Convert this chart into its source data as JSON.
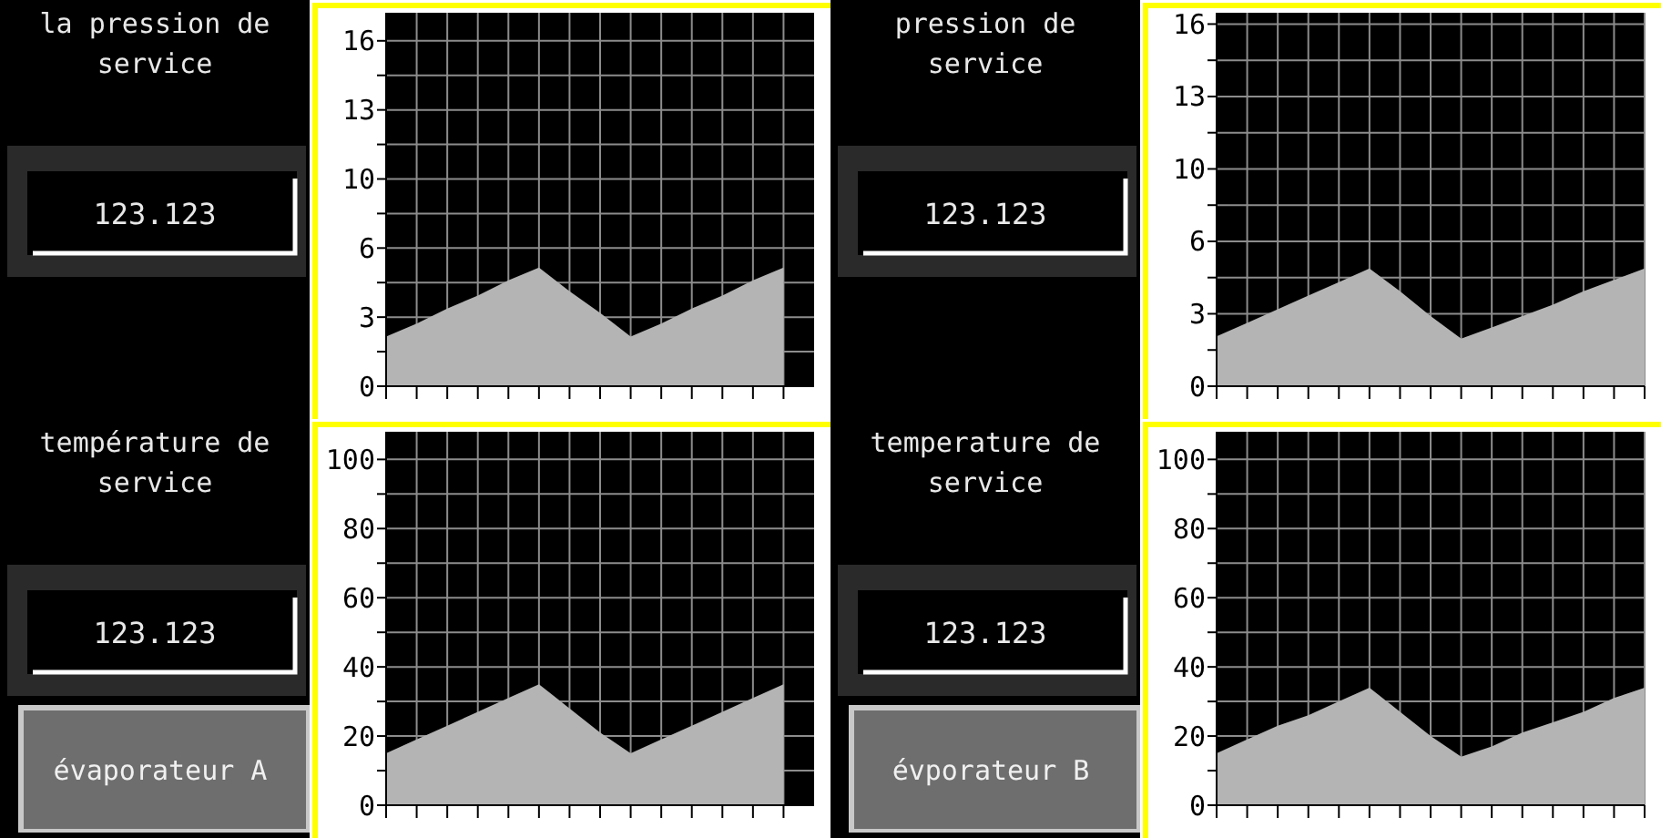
{
  "chart_data": [
    {
      "type": "area",
      "title": "la pression de service",
      "annotations": [
        "123.123"
      ],
      "categories": [
        null,
        null,
        null,
        null,
        null,
        null,
        null,
        null,
        null,
        null,
        null,
        null,
        null,
        null
      ],
      "values": [
        2.3,
        2.9,
        3.6,
        4.2,
        4.9,
        5.5,
        4.4,
        3.4,
        2.3,
        2.9,
        3.6,
        4.2,
        4.9,
        5.5
      ],
      "color": "#b4b4b4",
      "ylim": [
        0,
        17.3
      ],
      "yticks": [
        0,
        {
          "value": 1.6,
          "label": null
        },
        {
          "value": 3.2,
          "label": "3"
        },
        {
          "value": 4.8,
          "label": null
        },
        {
          "value": 6.4,
          "label": "6"
        },
        {
          "value": 8,
          "label": null
        },
        {
          "value": 9.6,
          "label": "10"
        },
        {
          "value": 11.2,
          "label": null
        },
        {
          "value": 12.8,
          "label": "13"
        },
        {
          "value": 14.4,
          "label": null
        },
        16
      ],
      "grid": true,
      "tick_labels": "y"
    },
    {
      "type": "area",
      "title": "pression de service",
      "annotations": [
        "123.123"
      ],
      "categories": [
        null,
        null,
        null,
        null,
        null,
        null,
        null,
        null,
        null,
        null,
        null,
        null,
        null,
        null,
        null
      ],
      "values": [
        2.2,
        2.8,
        3.4,
        4.0,
        4.6,
        5.2,
        4.2,
        3.1,
        2.1,
        2.6,
        3.1,
        3.6,
        4.2,
        4.7,
        5.2
      ],
      "color": "#b4b4b4",
      "ylim": [
        0,
        16.5
      ],
      "yticks": [
        0,
        {
          "value": 1.6,
          "label": null
        },
        {
          "value": 3.2,
          "label": "3"
        },
        {
          "value": 4.8,
          "label": null
        },
        {
          "value": 6.4,
          "label": "6"
        },
        {
          "value": 8,
          "label": null
        },
        {
          "value": 9.6,
          "label": "10"
        },
        {
          "value": 11.2,
          "label": null
        },
        {
          "value": 12.8,
          "label": "13"
        },
        {
          "value": 14.4,
          "label": null
        },
        16
      ],
      "grid": true,
      "tick_labels": "y"
    },
    {
      "type": "area",
      "title": "température de service",
      "annotations": [
        "123.123",
        "évaporateur A"
      ],
      "categories": [
        null,
        null,
        null,
        null,
        null,
        null,
        null,
        null,
        null,
        null,
        null,
        null,
        null,
        null
      ],
      "values": [
        15,
        19,
        23,
        27,
        31,
        35,
        28,
        21,
        15,
        19,
        23,
        27,
        31,
        35
      ],
      "color": "#b4b4b4",
      "ylim": [
        0,
        108
      ],
      "yticks": [
        0,
        {
          "value": 10,
          "label": null
        },
        20,
        {
          "value": 30,
          "label": null
        },
        40,
        {
          "value": 50,
          "label": null
        },
        60,
        {
          "value": 70,
          "label": null
        },
        80,
        {
          "value": 90,
          "label": null
        },
        100
      ],
      "grid": true,
      "tick_labels": "y"
    },
    {
      "type": "area",
      "title": "temperature de service",
      "annotations": [
        "123.123",
        "évporateur B"
      ],
      "categories": [
        null,
        null,
        null,
        null,
        null,
        null,
        null,
        null,
        null,
        null,
        null,
        null,
        null,
        null,
        null
      ],
      "values": [
        15,
        19,
        23,
        26,
        30,
        34,
        27,
        20,
        14,
        17,
        21,
        24,
        27,
        31,
        34
      ],
      "color": "#b4b4b4",
      "ylim": [
        0,
        108
      ],
      "yticks": [
        0,
        {
          "value": 10,
          "label": null
        },
        20,
        {
          "value": 30,
          "label": null
        },
        40,
        {
          "value": 50,
          "label": null
        },
        60,
        {
          "value": 70,
          "label": null
        },
        80,
        {
          "value": 90,
          "label": null
        },
        100
      ],
      "grid": true,
      "tick_labels": "y"
    }
  ]
}
